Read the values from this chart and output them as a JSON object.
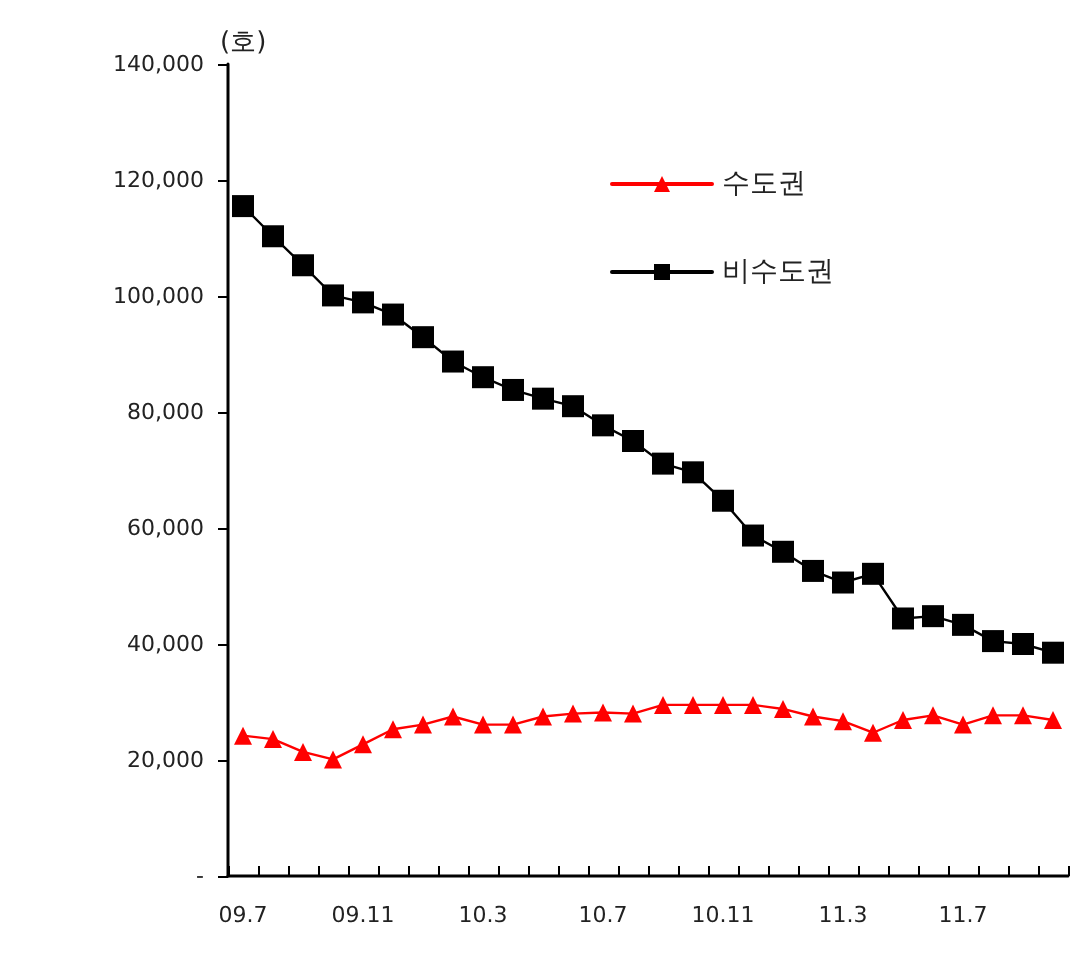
{
  "chart_data": {
    "type": "line",
    "ylabel": "(호)",
    "categories": [
      "09.7",
      null,
      null,
      null,
      "09.11",
      null,
      null,
      null,
      "10.3",
      null,
      null,
      null,
      "10.7",
      null,
      null,
      null,
      "10.11",
      null,
      null,
      null,
      "11.3",
      null,
      null,
      null,
      "11.7",
      null,
      null,
      null
    ],
    "series": [
      {
        "name": "수도권",
        "color": "#ff0000",
        "marker": "triangle",
        "values": [
          24200,
          23600,
          21400,
          20100,
          22700,
          25300,
          26100,
          27500,
          26100,
          26100,
          27500,
          28000,
          28200,
          28000,
          29500,
          29500,
          29500,
          29500,
          28800,
          27500,
          26700,
          24700,
          26900,
          27700,
          26100,
          27700,
          27700,
          26900
        ]
      },
      {
        "name": "비수도권",
        "color": "#000000",
        "marker": "square",
        "values": [
          115500,
          110300,
          105300,
          100100,
          98900,
          96800,
          92900,
          88700,
          86000,
          83800,
          82300,
          81000,
          77700,
          75000,
          71100,
          69600,
          64700,
          58700,
          55900,
          52600,
          50600,
          52100,
          44400,
          44800,
          43300,
          40500,
          40000,
          38500
        ]
      }
    ],
    "ylim": [
      0,
      140000
    ],
    "yticks": [
      {
        "value": 0,
        "label": "-"
      },
      {
        "value": 20000,
        "label": "20,000"
      },
      {
        "value": 40000,
        "label": "40,000"
      },
      {
        "value": 60000,
        "label": "60,000"
      },
      {
        "value": 80000,
        "label": "80,000"
      },
      {
        "value": 100000,
        "label": "100,000"
      },
      {
        "value": 120000,
        "label": "120,000"
      },
      {
        "value": 140000,
        "label": "140,000"
      }
    ],
    "grid": false,
    "legend": "top right"
  }
}
